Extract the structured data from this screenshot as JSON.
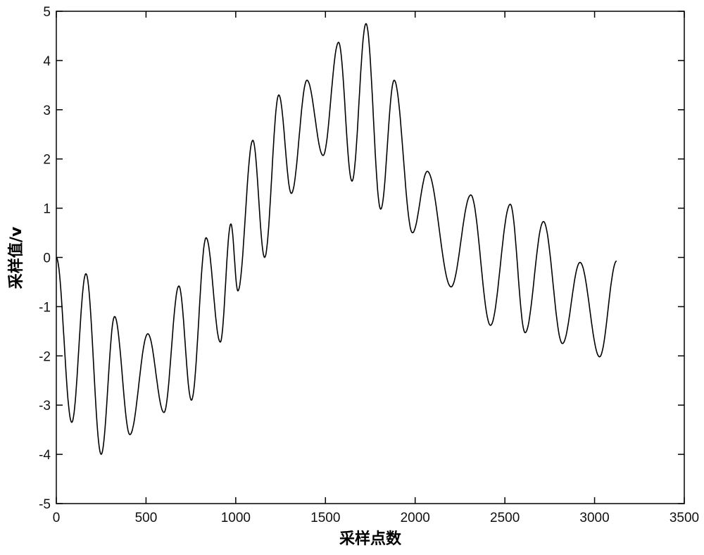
{
  "chart_data": {
    "type": "line",
    "title": "",
    "xlabel": "采样点数",
    "ylabel": "采样值/v",
    "xlim": [
      0,
      3500
    ],
    "ylim": [
      -5,
      5
    ],
    "xticks": [
      "0",
      "500",
      "1000",
      "1500",
      "2000",
      "2500",
      "3000",
      "3500"
    ],
    "yticks": [
      "5",
      "4",
      "3",
      "2",
      "1",
      "0",
      "-1",
      "-2",
      "-3",
      "-4",
      "-5"
    ],
    "grid": false,
    "line_color": "#000000",
    "series": [
      {
        "extrema_points": [
          [
            0,
            0
          ],
          [
            86,
            -3.35
          ],
          [
            165,
            -0.33
          ],
          [
            250,
            -4.0
          ],
          [
            325,
            -1.2
          ],
          [
            410,
            -3.6
          ],
          [
            510,
            -1.55
          ],
          [
            600,
            -3.15
          ],
          [
            683,
            -0.58
          ],
          [
            753,
            -2.9
          ],
          [
            835,
            0.4
          ],
          [
            914,
            -1.72
          ],
          [
            973,
            0.68
          ],
          [
            1012,
            -0.68
          ],
          [
            1095,
            2.38
          ],
          [
            1161,
            0.0
          ],
          [
            1240,
            3.3
          ],
          [
            1310,
            1.3
          ],
          [
            1397,
            3.6
          ],
          [
            1487,
            2.07
          ],
          [
            1573,
            4.37
          ],
          [
            1648,
            1.55
          ],
          [
            1726,
            4.75
          ],
          [
            1808,
            0.98
          ],
          [
            1883,
            3.6
          ],
          [
            1985,
            0.5
          ],
          [
            2068,
            1.75
          ],
          [
            2200,
            -0.6
          ],
          [
            2310,
            1.27
          ],
          [
            2420,
            -1.38
          ],
          [
            2530,
            1.08
          ],
          [
            2613,
            -1.53
          ],
          [
            2715,
            0.73
          ],
          [
            2821,
            -1.75
          ],
          [
            2919,
            -0.1
          ],
          [
            3028,
            -2.02
          ],
          [
            3123,
            -0.07
          ]
        ]
      }
    ]
  }
}
